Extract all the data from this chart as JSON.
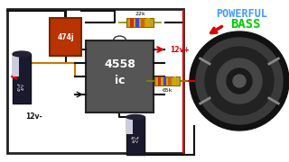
{
  "bg_color": "#ffffff",
  "ic_label": "4558\nic",
  "ic_bg": "#555555",
  "powerful_text": "POWERFUL",
  "bass_text": "BASS",
  "powerful_color": "#4499ff",
  "bass_color": "#00cc00",
  "v_pos_label": "12v+",
  "v_neg_label": "12v-",
  "resistor1_label": "22k",
  "resistor2_label": "65k",
  "cap1_label": "474j",
  "wire_red": "#dd0000",
  "wire_orange": "#cc7700",
  "wire_black": "#111111"
}
